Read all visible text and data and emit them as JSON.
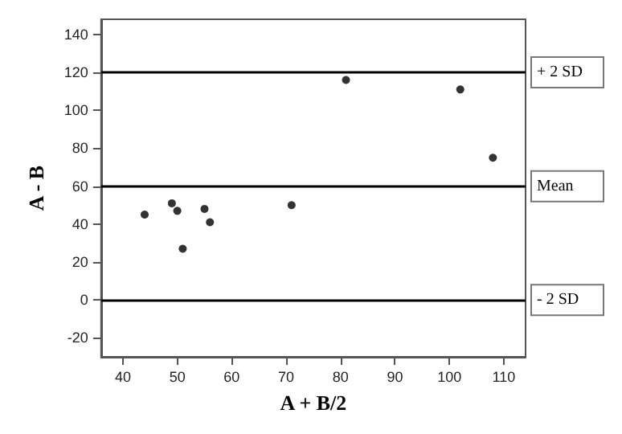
{
  "chart_data": {
    "type": "scatter",
    "xlabel": "A + B/2",
    "ylabel": "A - B",
    "x": [
      44,
      49,
      50,
      51,
      55,
      56,
      71,
      81,
      102,
      108
    ],
    "values": [
      45,
      51,
      47,
      27,
      48,
      41,
      50,
      116,
      111,
      75
    ],
    "color": "#000000",
    "marker": "circle",
    "xlim": [
      36,
      114
    ],
    "xticks": [
      40,
      50,
      60,
      70,
      80,
      90,
      100,
      110
    ],
    "ylim": [
      -30,
      148
    ],
    "yticks": [
      -20,
      0,
      20,
      40,
      60,
      80,
      100,
      120,
      140
    ],
    "grid": false,
    "ref_lines": [
      {
        "axis": "y",
        "value": 120,
        "label": "+ 2 SD",
        "color": "#000000"
      },
      {
        "axis": "y",
        "value": 60,
        "label": "Mean",
        "color": "#000000"
      },
      {
        "axis": "y",
        "value": 0,
        "label": "- 2 SD",
        "color": "#000000"
      }
    ]
  }
}
